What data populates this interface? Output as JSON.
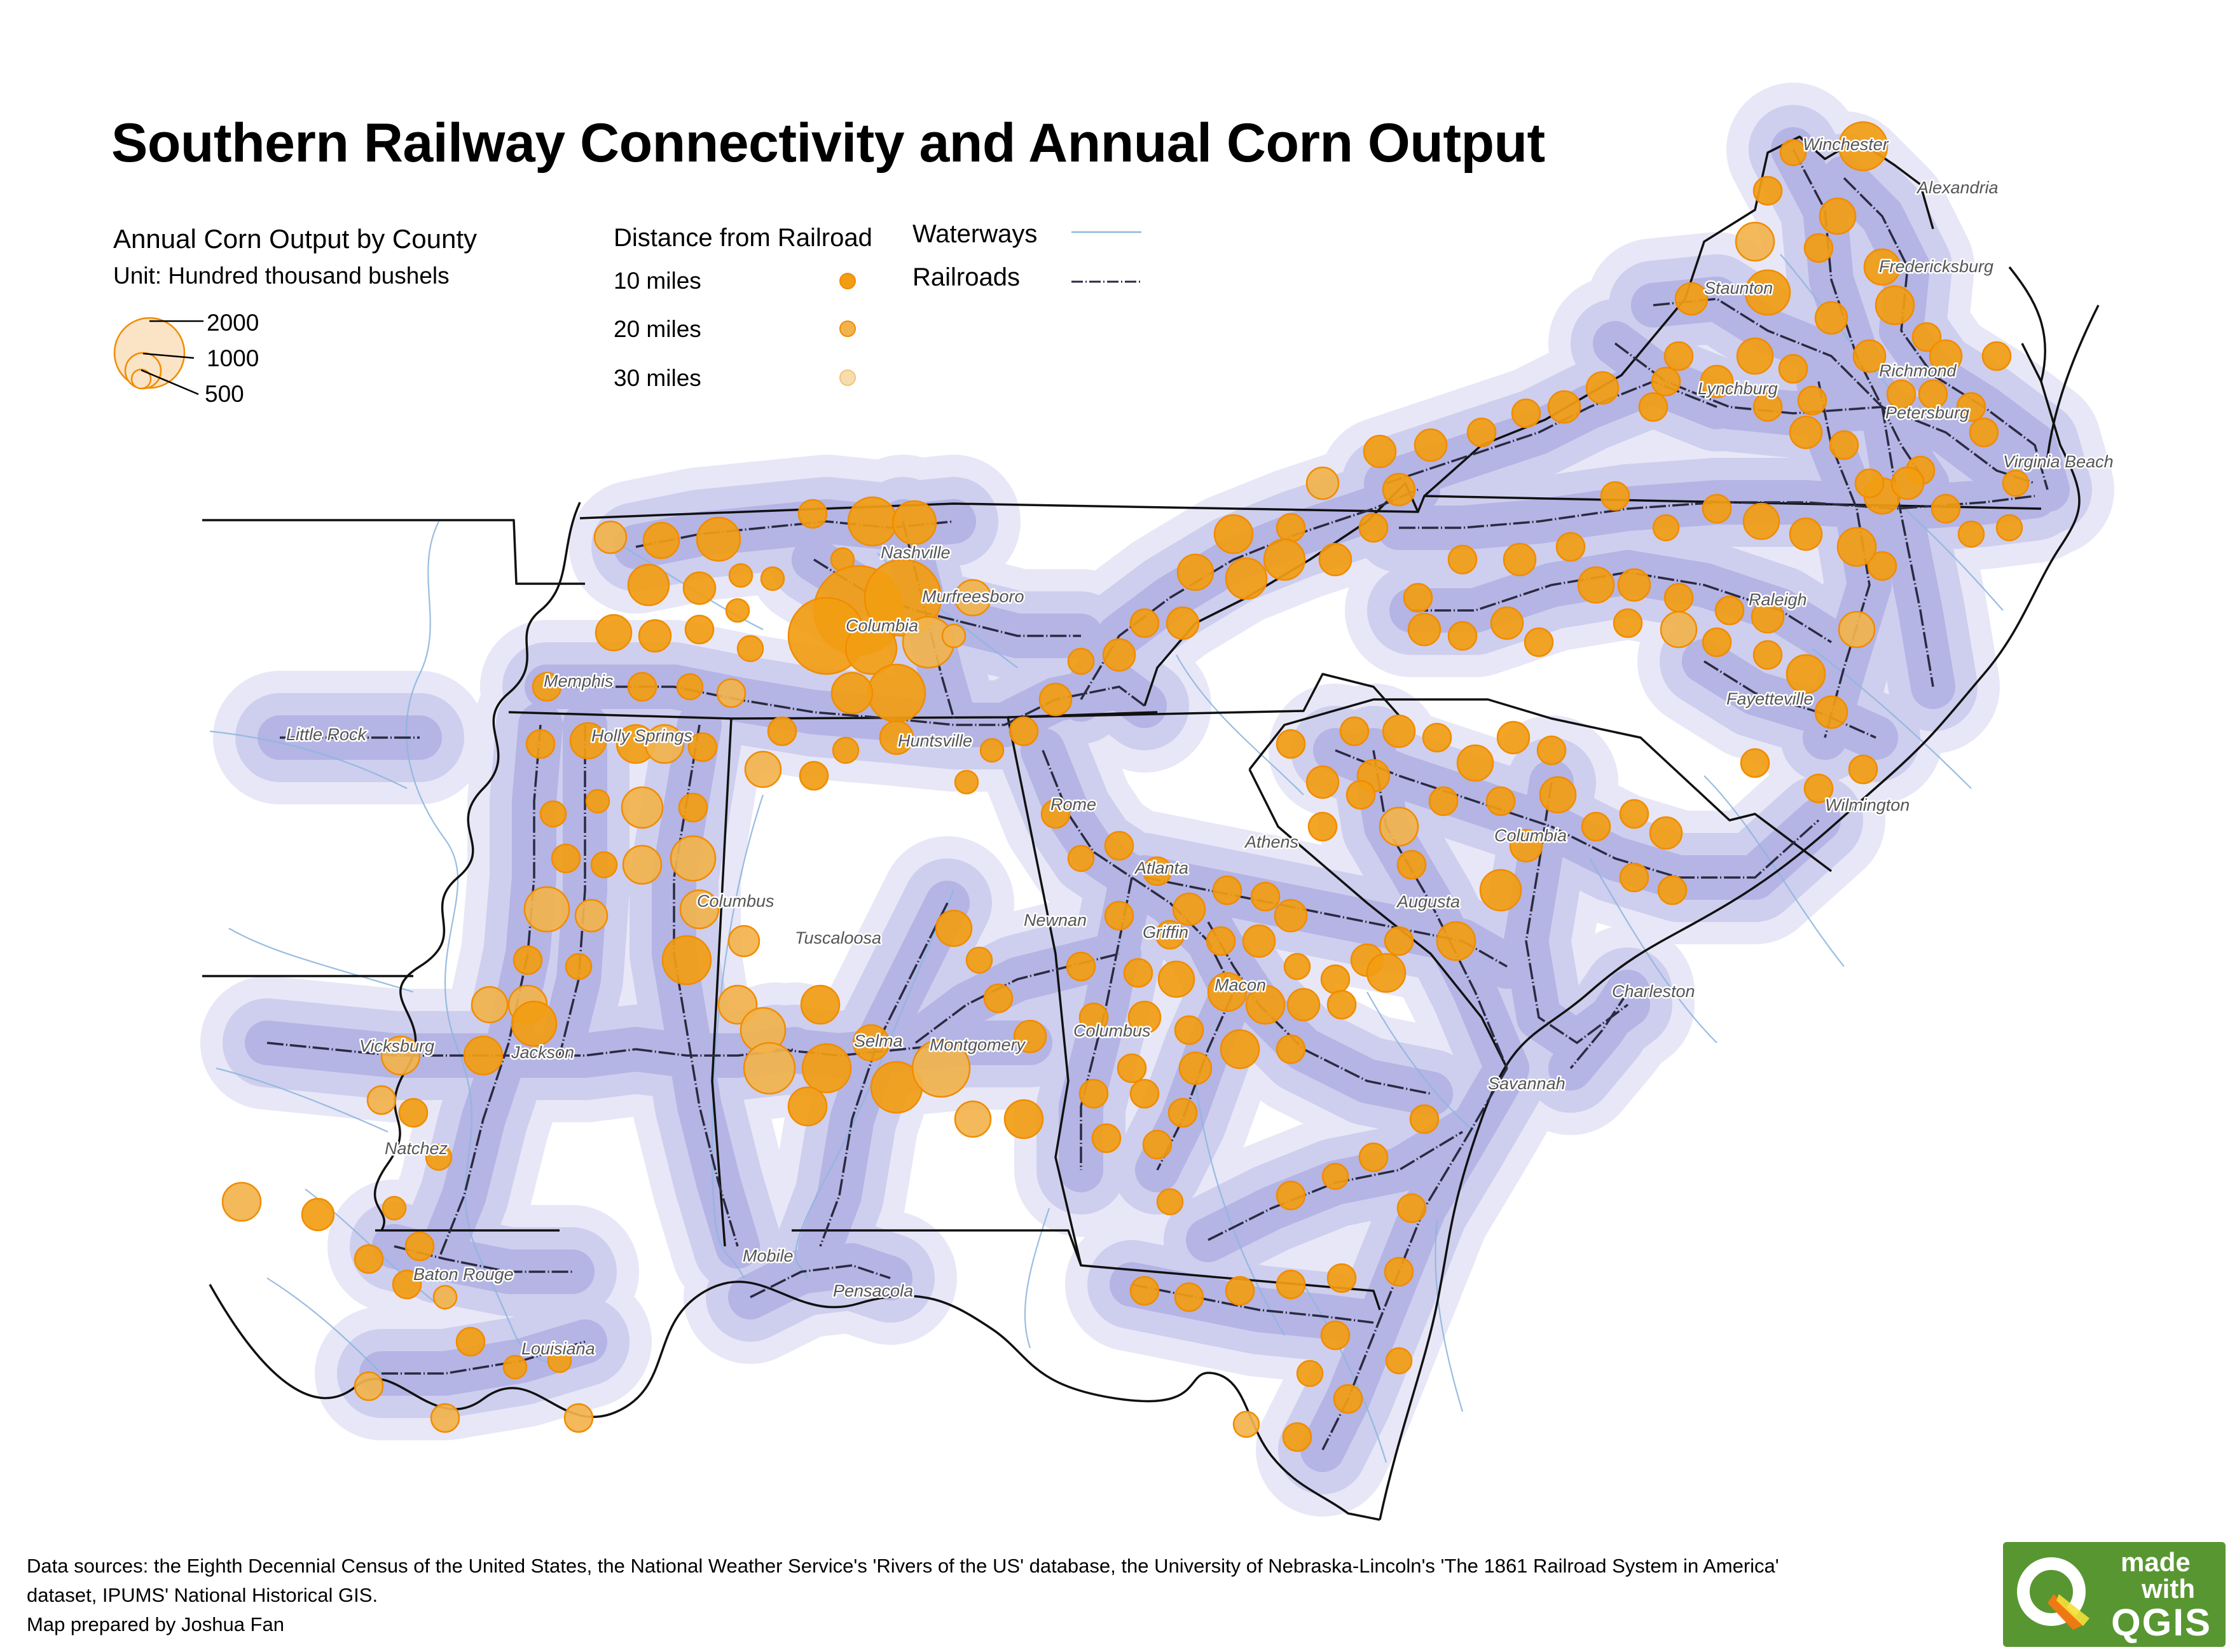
{
  "title": "Southern Railway Connectivity and Annual Corn Output",
  "legend": {
    "corn_heading": "Annual Corn Output by County",
    "corn_unit": "Unit: Hundred thousand bushels",
    "size_values": [
      "2000",
      "1000",
      "500"
    ],
    "distance_heading": "Distance from Railroad",
    "distance_items": [
      {
        "label": "10 miles",
        "color": "#f29d12"
      },
      {
        "label": "20 miles",
        "color": "#f2b34c"
      },
      {
        "label": "30 miles",
        "color": "#f7dcae"
      }
    ],
    "waterways_label": "Waterways",
    "railroads_label": "Railroads"
  },
  "cities": [
    "Winchester",
    "Alexandria",
    "Fredericksburg",
    "Staunton",
    "Richmond",
    "Lynchburg",
    "Petersburg",
    "Virginia Beach",
    "Nashville",
    "Murfreesboro",
    "Columbia",
    "Memphis",
    "Little Rock",
    "Holly Springs",
    "Huntsville",
    "Raleigh",
    "Fayetteville",
    "Wilmington",
    "Rome",
    "Athens",
    "Atlanta",
    "Columbia",
    "Augusta",
    "Columbus",
    "Newnan",
    "Griffin",
    "Tuscaloosa",
    "Macon",
    "Charleston",
    "Vicksburg",
    "Jackson",
    "Selma",
    "Montgomery",
    "Columbus",
    "Savannah",
    "Natchez",
    "Baton Rouge",
    "Mobile",
    "Pensacola",
    "Louisiana"
  ],
  "footer": {
    "sources_line1": "Data sources: the Eighth Decennial Census of the United States, the National Weather Service's 'Rivers of the US' database, the University of Nebraska-Lincoln's 'The 1861 Railroad System in America'",
    "sources_line2": "dataset, IPUMS' National Historical GIS.",
    "credit": "Map prepared by Joshua Fan"
  },
  "badge": {
    "line1": "made",
    "line2": "with",
    "line3": "QGIS"
  },
  "colors": {
    "buffer": "#7878d2",
    "corn_near": "#f29d12",
    "corn_mid": "#f2b34c",
    "corn_far": "#f7dcae",
    "stroke": "#f08c00",
    "railroad": "#2a2a40",
    "water": "#8fb6de",
    "qgis_green": "#589632"
  }
}
